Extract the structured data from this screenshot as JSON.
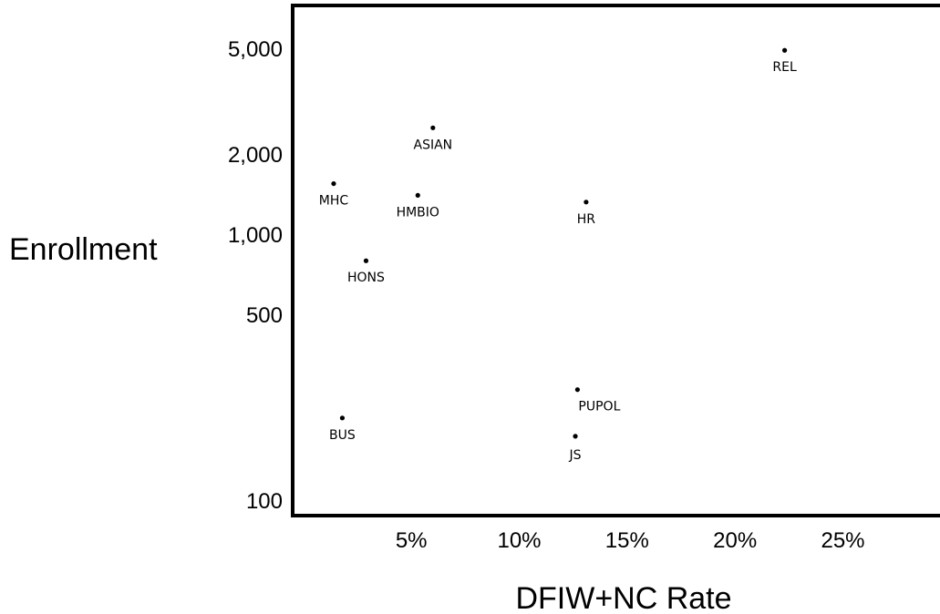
{
  "chart_data": {
    "type": "scatter",
    "title": "",
    "xlabel": "DFIW+NC Rate",
    "ylabel": "Enrollment",
    "x_unit": "percent",
    "y_scale": "log",
    "xlim": [
      -0.5,
      29.5
    ],
    "ylim": [
      88,
      7300
    ],
    "x_ticks": [
      {
        "value": 5,
        "label": "5%"
      },
      {
        "value": 10,
        "label": "10%"
      },
      {
        "value": 15,
        "label": "15%"
      },
      {
        "value": 20,
        "label": "20%"
      },
      {
        "value": 25,
        "label": "25%"
      }
    ],
    "y_ticks": [
      {
        "value": 100,
        "label": "100"
      },
      {
        "value": 500,
        "label": "500"
      },
      {
        "value": 1000,
        "label": "1,000"
      },
      {
        "value": 2000,
        "label": "2,000"
      },
      {
        "value": 5000,
        "label": "5,000"
      }
    ],
    "grid": false,
    "legend": "none",
    "points": [
      {
        "label": "REL",
        "x": 22.3,
        "y": 4950
      },
      {
        "label": "ASIAN",
        "x": 6.0,
        "y": 2530
      },
      {
        "label": "MHC",
        "x": 1.4,
        "y": 1560
      },
      {
        "label": "HMBIO",
        "x": 5.3,
        "y": 1410
      },
      {
        "label": "HR",
        "x": 13.1,
        "y": 1330
      },
      {
        "label": "HONS",
        "x": 2.9,
        "y": 800
      },
      {
        "label": "PUPOL",
        "x": 12.7,
        "y": 262
      },
      {
        "label": "BUS",
        "x": 1.8,
        "y": 205
      },
      {
        "label": "JS",
        "x": 12.6,
        "y": 175
      }
    ]
  }
}
